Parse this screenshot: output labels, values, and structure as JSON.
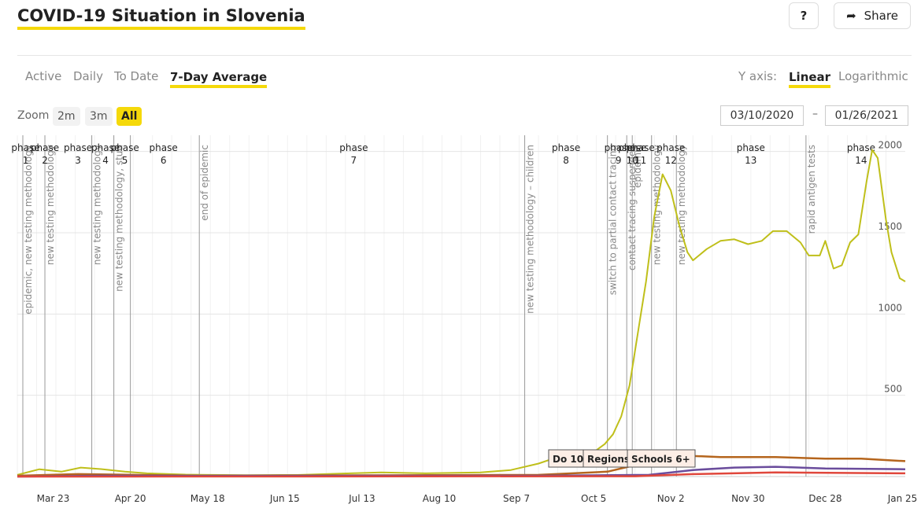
{
  "page": {
    "title": "COVID-19 Situation in Slovenia"
  },
  "toolbar": {
    "help_label": "?",
    "share_label": "Share"
  },
  "tabs": [
    "Active",
    "Daily",
    "To Date",
    "7-Day Average"
  ],
  "yaxis_switch": {
    "label": "Y axis:",
    "options": [
      "Linear",
      "Logarithmic"
    ],
    "selected": "Linear"
  },
  "zoom": {
    "label": "Zoom",
    "options": [
      "2m",
      "3m",
      "All"
    ],
    "selected": "All"
  },
  "range": {
    "from": "03/10/2020",
    "separator": "–",
    "to": "01/26/2021"
  },
  "colors": {
    "accent": "#f5d90a",
    "series_main": "#bfbf1a",
    "series_brown": "#b5651d",
    "series_purple": "#6a4c9c",
    "series_red": "#e0473c"
  },
  "chart_data": {
    "type": "line",
    "title": "",
    "xlabel": "",
    "ylabel": "",
    "x_ticks": [
      {
        "label": "Mar 23",
        "date": "2020-03-23"
      },
      {
        "label": "Apr 20",
        "date": "2020-04-20"
      },
      {
        "label": "May 18",
        "date": "2020-05-18"
      },
      {
        "label": "Jun 15",
        "date": "2020-06-15"
      },
      {
        "label": "Jul 13",
        "date": "2020-07-13"
      },
      {
        "label": "Aug 10",
        "date": "2020-08-10"
      },
      {
        "label": "Sep 7",
        "date": "2020-09-07"
      },
      {
        "label": "Oct 5",
        "date": "2020-10-05"
      },
      {
        "label": "Nov 2",
        "date": "2020-11-02"
      },
      {
        "label": "Nov 30",
        "date": "2020-11-30"
      },
      {
        "label": "Dec 28",
        "date": "2020-12-28"
      },
      {
        "label": "Jan 25",
        "date": "2021-01-25"
      }
    ],
    "y_ticks": [
      500,
      1000,
      1500,
      2000
    ],
    "xlim": [
      "2020-03-10",
      "2021-01-26"
    ],
    "ylim": [
      0,
      2100
    ],
    "grid": true,
    "phases": [
      {
        "top": "phase",
        "num": "1",
        "date": "2020-03-13"
      },
      {
        "top": "phase",
        "num": "2",
        "date": "2020-03-20"
      },
      {
        "top": "phase",
        "num": "3",
        "date": "2020-04-01"
      },
      {
        "top": "phase",
        "num": "4",
        "date": "2020-04-11"
      },
      {
        "top": "phase",
        "num": "5",
        "date": "2020-04-18"
      },
      {
        "top": "phase",
        "num": "6",
        "date": "2020-05-02"
      },
      {
        "top": "phase",
        "num": "7",
        "date": "2020-07-10"
      },
      {
        "top": "phase",
        "num": "8",
        "date": "2020-09-25"
      },
      {
        "top": "phase",
        "num": "9",
        "date": "2020-10-14"
      },
      {
        "top": "phase",
        "num": "10",
        "date": "2020-10-19"
      },
      {
        "top": "phase",
        "num": "11",
        "date": "2020-10-22"
      },
      {
        "top": "phase",
        "num": "12",
        "date": "2020-11-02"
      },
      {
        "top": "phase",
        "num": "13",
        "date": "2020-12-01"
      },
      {
        "top": "phase",
        "num": "14",
        "date": "2021-01-10"
      }
    ],
    "markers": [
      {
        "date": "2020-03-12",
        "label": "epidemic, new testing methodology"
      },
      {
        "date": "2020-03-20",
        "label": "new testing methodology"
      },
      {
        "date": "2020-04-06",
        "label": "new testing methodology"
      },
      {
        "date": "2020-04-14",
        "label": "new testing methodology, stud"
      },
      {
        "date": "2020-04-20",
        "label": ""
      },
      {
        "date": "2020-05-15",
        "label": "end of epidemic"
      },
      {
        "date": "2020-09-10",
        "label": "new testing methodology – children"
      },
      {
        "date": "2020-10-10",
        "label": "switch to partial contact tracing"
      },
      {
        "date": "2020-10-17",
        "label": "contact tracing suspended"
      },
      {
        "date": "2020-10-19",
        "label": "epidemic"
      },
      {
        "date": "2020-10-26",
        "label": "new testing methodology"
      },
      {
        "date": "2020-11-04",
        "label": "new testing methodology"
      },
      {
        "date": "2020-12-21",
        "label": "rapid antigen tests"
      }
    ],
    "flags": [
      "Do 10",
      "Regions",
      "Schools 6+"
    ],
    "series": [
      {
        "color": "#bfbf1a",
        "points": [
          [
            "2020-03-10",
            10
          ],
          [
            "2020-03-18",
            45
          ],
          [
            "2020-03-26",
            30
          ],
          [
            "2020-04-02",
            55
          ],
          [
            "2020-04-10",
            45
          ],
          [
            "2020-04-18",
            30
          ],
          [
            "2020-04-26",
            20
          ],
          [
            "2020-05-10",
            12
          ],
          [
            "2020-06-01",
            8
          ],
          [
            "2020-06-20",
            10
          ],
          [
            "2020-07-05",
            18
          ],
          [
            "2020-07-20",
            25
          ],
          [
            "2020-08-05",
            20
          ],
          [
            "2020-08-25",
            25
          ],
          [
            "2020-09-05",
            40
          ],
          [
            "2020-09-15",
            80
          ],
          [
            "2020-09-22",
            120
          ],
          [
            "2020-09-30",
            100
          ],
          [
            "2020-10-05",
            150
          ],
          [
            "2020-10-09",
            200
          ],
          [
            "2020-10-12",
            260
          ],
          [
            "2020-10-15",
            370
          ],
          [
            "2020-10-18",
            560
          ],
          [
            "2020-10-21",
            880
          ],
          [
            "2020-10-24",
            1200
          ],
          [
            "2020-10-27",
            1600
          ],
          [
            "2020-10-30",
            1860
          ],
          [
            "2020-11-02",
            1760
          ],
          [
            "2020-11-05",
            1550
          ],
          [
            "2020-11-08",
            1380
          ],
          [
            "2020-11-10",
            1330
          ],
          [
            "2020-11-15",
            1400
          ],
          [
            "2020-11-20",
            1450
          ],
          [
            "2020-11-25",
            1460
          ],
          [
            "2020-11-30",
            1430
          ],
          [
            "2020-12-05",
            1450
          ],
          [
            "2020-12-09",
            1510
          ],
          [
            "2020-12-14",
            1510
          ],
          [
            "2020-12-19",
            1440
          ],
          [
            "2020-12-22",
            1360
          ],
          [
            "2020-12-26",
            1360
          ],
          [
            "2020-12-28",
            1450
          ],
          [
            "2020-12-31",
            1280
          ],
          [
            "2021-01-03",
            1300
          ],
          [
            "2021-01-06",
            1440
          ],
          [
            "2021-01-09",
            1490
          ],
          [
            "2021-01-12",
            1820
          ],
          [
            "2021-01-14",
            2010
          ],
          [
            "2021-01-16",
            1960
          ],
          [
            "2021-01-19",
            1580
          ],
          [
            "2021-01-21",
            1380
          ],
          [
            "2021-01-24",
            1220
          ],
          [
            "2021-01-26",
            1200
          ]
        ]
      },
      {
        "color": "#b5651d",
        "points": [
          [
            "2020-03-10",
            5
          ],
          [
            "2020-04-01",
            15
          ],
          [
            "2020-05-15",
            5
          ],
          [
            "2020-09-15",
            10
          ],
          [
            "2020-10-10",
            30
          ],
          [
            "2020-10-25",
            90
          ],
          [
            "2020-11-05",
            130
          ],
          [
            "2020-11-20",
            120
          ],
          [
            "2020-12-10",
            120
          ],
          [
            "2020-12-28",
            110
          ],
          [
            "2021-01-10",
            110
          ],
          [
            "2021-01-26",
            95
          ]
        ]
      },
      {
        "color": "#6a4c9c",
        "points": [
          [
            "2020-03-10",
            0
          ],
          [
            "2020-04-10",
            5
          ],
          [
            "2020-09-15",
            5
          ],
          [
            "2020-10-25",
            10
          ],
          [
            "2020-11-10",
            40
          ],
          [
            "2020-11-25",
            55
          ],
          [
            "2020-12-10",
            60
          ],
          [
            "2020-12-28",
            50
          ],
          [
            "2021-01-26",
            45
          ]
        ]
      },
      {
        "color": "#e0473c",
        "points": [
          [
            "2020-03-10",
            0
          ],
          [
            "2020-10-20",
            2
          ],
          [
            "2020-11-10",
            15
          ],
          [
            "2020-12-10",
            25
          ],
          [
            "2021-01-26",
            20
          ]
        ]
      }
    ]
  }
}
